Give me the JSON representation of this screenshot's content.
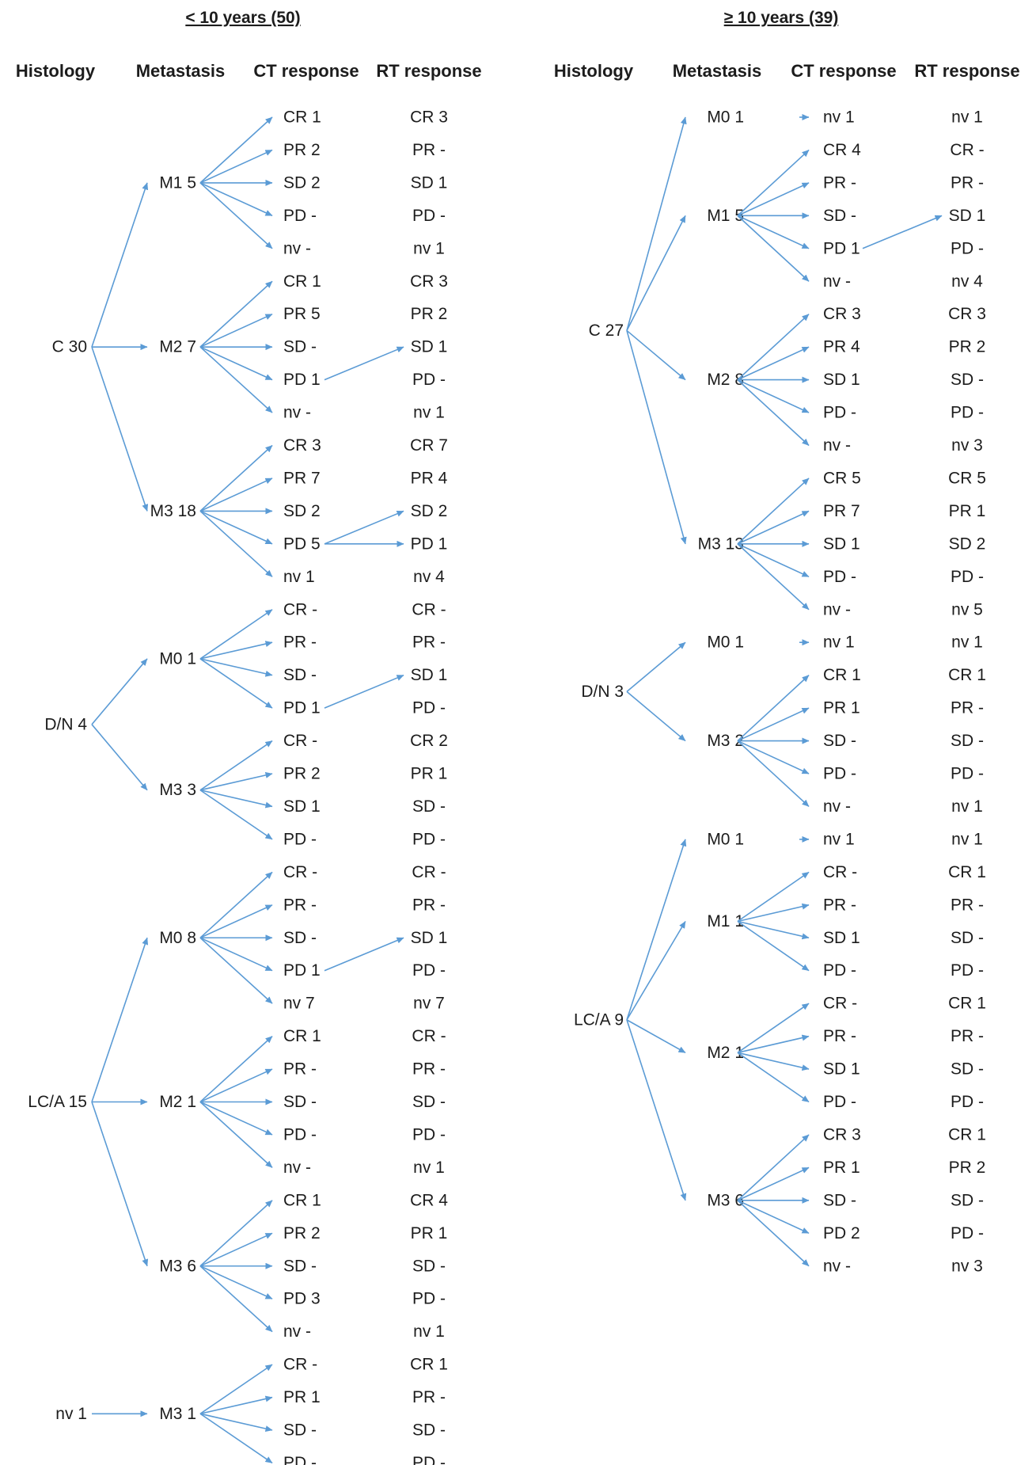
{
  "panels": [
    {
      "title": "< 10 years (50)",
      "headers": [
        "Histology",
        "Metastasis",
        "CT response",
        "RT response"
      ],
      "groups": [
        {
          "label": "C 30",
          "mets": [
            {
              "label": "M1 5",
              "ct": [
                "CR 1",
                "PR 2",
                "SD 2",
                "PD -",
                "nv -"
              ],
              "rt": [
                "CR 3",
                "PR -",
                "SD 1",
                "PD -",
                "nv 1"
              ],
              "links": []
            },
            {
              "label": "M2 7",
              "ct": [
                "CR 1",
                "PR 5",
                "SD -",
                "PD 1",
                "nv -"
              ],
              "rt": [
                "CR 3",
                "PR 2",
                "SD 1",
                "PD -",
                "nv 1"
              ],
              "links": [
                [
                  3,
                  2
                ]
              ]
            },
            {
              "label": "M3 18",
              "ct": [
                "CR 3",
                "PR 7",
                "SD 2",
                "PD 5",
                "nv 1"
              ],
              "rt": [
                "CR 7",
                "PR 4",
                "SD 2",
                "PD 1",
                "nv 4"
              ],
              "links": [
                [
                  3,
                  2
                ],
                [
                  3,
                  3
                ]
              ]
            }
          ]
        },
        {
          "label": "D/N 4",
          "mets": [
            {
              "label": "M0 1",
              "ct": [
                "CR -",
                "PR -",
                "SD -",
                "PD 1"
              ],
              "rt": [
                "CR -",
                "PR -",
                "SD 1",
                "PD -"
              ],
              "links": [
                [
                  3,
                  2
                ]
              ]
            },
            {
              "label": "M3 3",
              "ct": [
                "CR -",
                "PR 2",
                "SD 1",
                "PD -"
              ],
              "rt": [
                "CR 2",
                "PR 1",
                "SD -",
                "PD -"
              ],
              "links": []
            }
          ]
        },
        {
          "label": "LC/A 15",
          "mets": [
            {
              "label": "M0 8",
              "ct": [
                "CR -",
                "PR -",
                "SD -",
                "PD 1",
                "nv 7"
              ],
              "rt": [
                "CR -",
                "PR -",
                "SD 1",
                "PD -",
                "nv 7"
              ],
              "links": [
                [
                  3,
                  2
                ]
              ]
            },
            {
              "label": "M2 1",
              "ct": [
                "CR 1",
                "PR -",
                "SD -",
                "PD -",
                "nv -"
              ],
              "rt": [
                "CR -",
                "PR -",
                "SD -",
                "PD -",
                "nv 1"
              ],
              "links": []
            },
            {
              "label": "M3 6",
              "ct": [
                "CR 1",
                "PR 2",
                "SD -",
                "PD 3",
                "nv -"
              ],
              "rt": [
                "CR 4",
                "PR 1",
                "SD -",
                "PD -",
                "nv 1"
              ],
              "links": []
            }
          ]
        },
        {
          "label": "nv 1",
          "mets": [
            {
              "label": "M3 1",
              "ct": [
                "CR -",
                "PR 1",
                "SD -",
                "PD -"
              ],
              "rt": [
                "CR 1",
                "PR -",
                "SD -",
                "PD -"
              ],
              "links": []
            }
          ]
        }
      ]
    },
    {
      "title": "≥ 10 years (39)",
      "headers": [
        "Histology",
        "Metastasis",
        "CT response",
        "RT response"
      ],
      "groups": [
        {
          "label": "C 27",
          "mets": [
            {
              "label": "M0 1",
              "ct": [
                "nv 1"
              ],
              "rt": [
                "nv 1"
              ],
              "links": []
            },
            {
              "label": "M1 5",
              "ct": [
                "CR 4",
                "PR -",
                "SD -",
                "PD 1",
                "nv -"
              ],
              "rt": [
                "CR -",
                "PR -",
                "SD 1",
                "PD -",
                "nv 4"
              ],
              "links": [
                [
                  3,
                  2
                ]
              ]
            },
            {
              "label": "M2 8",
              "ct": [
                "CR 3",
                "PR 4",
                "SD 1",
                "PD -",
                "nv -"
              ],
              "rt": [
                "CR 3",
                "PR 2",
                "SD -",
                "PD -",
                "nv 3"
              ],
              "links": []
            },
            {
              "label": "M3 13",
              "ct": [
                "CR 5",
                "PR 7",
                "SD 1",
                "PD -",
                "nv -"
              ],
              "rt": [
                "CR 5",
                "PR 1",
                "SD 2",
                "PD -",
                "nv 5"
              ],
              "links": []
            }
          ]
        },
        {
          "label": "D/N 3",
          "mets": [
            {
              "label": "M0 1",
              "ct": [
                "nv 1"
              ],
              "rt": [
                "nv 1"
              ],
              "links": []
            },
            {
              "label": "M3 2",
              "ct": [
                "CR 1",
                "PR 1",
                "SD -",
                "PD -",
                "nv -"
              ],
              "rt": [
                "CR 1",
                "PR -",
                "SD -",
                "PD -",
                "nv 1"
              ],
              "links": []
            }
          ]
        },
        {
          "label": "LC/A 9",
          "mets": [
            {
              "label": "M0 1",
              "ct": [
                "nv 1"
              ],
              "rt": [
                "nv 1"
              ],
              "links": []
            },
            {
              "label": "M1 1",
              "ct": [
                "CR -",
                "PR -",
                "SD 1",
                "PD -"
              ],
              "rt": [
                "CR 1",
                "PR -",
                "SD -",
                "PD -"
              ],
              "links": []
            },
            {
              "label": "M2 1",
              "ct": [
                "CR -",
                "PR -",
                "SD 1",
                "PD -"
              ],
              "rt": [
                "CR 1",
                "PR -",
                "SD -",
                "PD -"
              ],
              "links": []
            },
            {
              "label": "M3 6",
              "ct": [
                "CR 3",
                "PR 1",
                "SD -",
                "PD 2",
                "nv -"
              ],
              "rt": [
                "CR 1",
                "PR 2",
                "SD -",
                "PD -",
                "nv 3"
              ],
              "links": []
            }
          ]
        }
      ]
    }
  ]
}
